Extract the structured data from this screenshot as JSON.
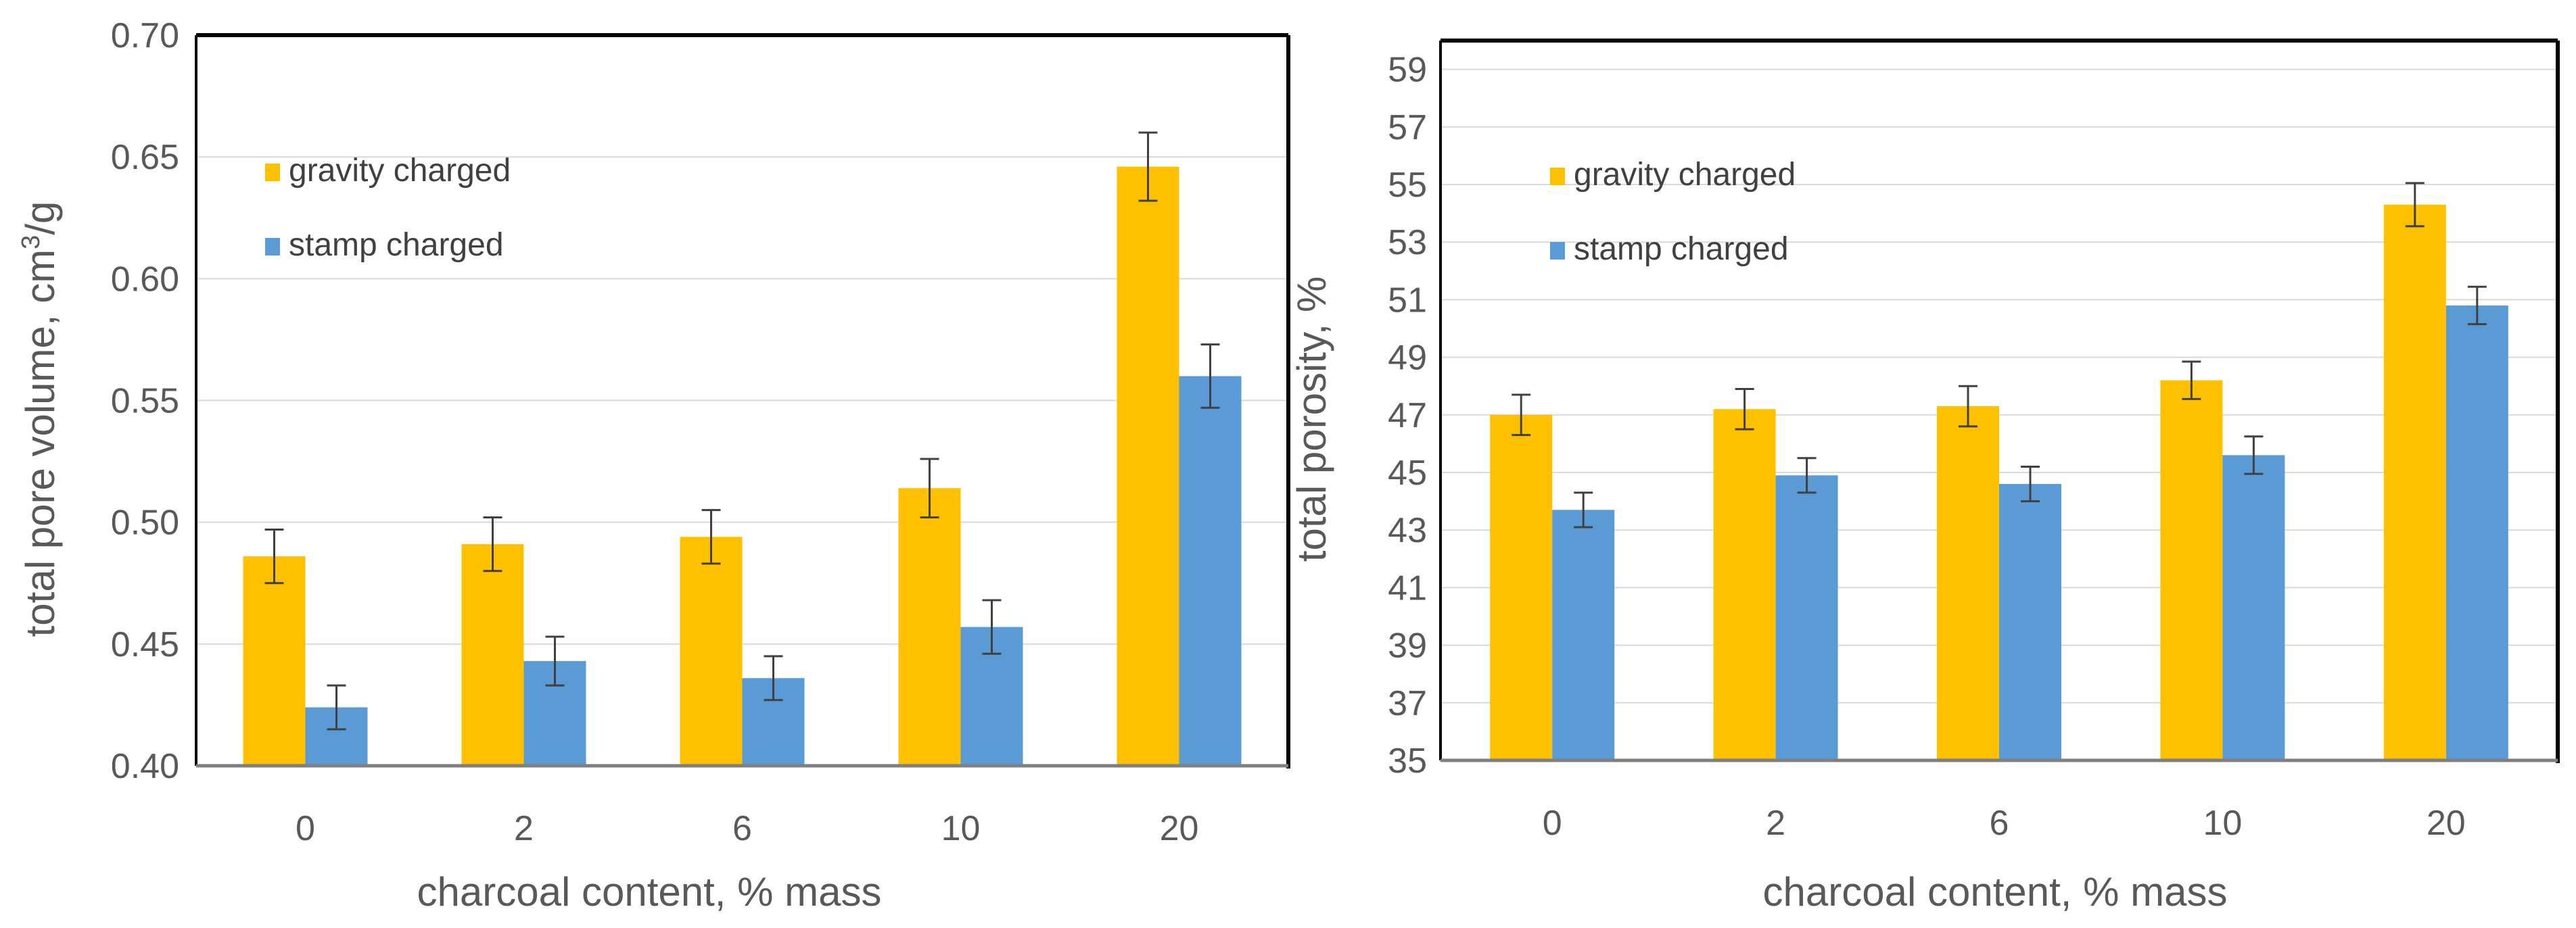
{
  "chart_data": [
    {
      "type": "bar",
      "title": "",
      "xlabel": "charcoal content, % mass",
      "ylabel_main": "total pore volume, cm",
      "ylabel_sup": "3",
      "ylabel_tail": "/g",
      "ylim": [
        0.4,
        0.7
      ],
      "y_ticks": [
        "0.40",
        "0.45",
        "0.50",
        "0.55",
        "0.60",
        "0.65",
        "0.70"
      ],
      "categories": [
        "0",
        "2",
        "6",
        "10",
        "20"
      ],
      "legend_position": "top-left",
      "grid": true,
      "series": [
        {
          "name": "gravity charged",
          "color": "#FFC000",
          "values": [
            0.486,
            0.491,
            0.494,
            0.514,
            0.646
          ],
          "errors": [
            0.011,
            0.011,
            0.011,
            0.012,
            0.014
          ]
        },
        {
          "name": "stamp charged",
          "color": "#5B9BD5",
          "values": [
            0.424,
            0.443,
            0.436,
            0.457,
            0.56
          ],
          "errors": [
            0.009,
            0.01,
            0.009,
            0.011,
            0.013
          ]
        }
      ]
    },
    {
      "type": "bar",
      "title": "",
      "xlabel": "charcoal content, % mass",
      "ylabel_main": "total porosity, %",
      "ylabel_sup": "",
      "ylabel_tail": "",
      "ylim": [
        35,
        60
      ],
      "y_ticks": [
        "35",
        "37",
        "39",
        "41",
        "43",
        "45",
        "47",
        "49",
        "51",
        "53",
        "55",
        "57",
        "59"
      ],
      "categories": [
        "0",
        "2",
        "6",
        "10",
        "20"
      ],
      "legend_position": "top-left",
      "grid": true,
      "series": [
        {
          "name": "gravity charged",
          "color": "#FFC000",
          "values": [
            47.0,
            47.2,
            47.3,
            48.2,
            54.3
          ],
          "errors": [
            0.7,
            0.7,
            0.7,
            0.65,
            0.75
          ]
        },
        {
          "name": "stamp charged",
          "color": "#5B9BD5",
          "values": [
            43.7,
            44.9,
            44.6,
            45.6,
            50.8
          ],
          "errors": [
            0.6,
            0.6,
            0.6,
            0.65,
            0.65
          ]
        }
      ]
    }
  ]
}
